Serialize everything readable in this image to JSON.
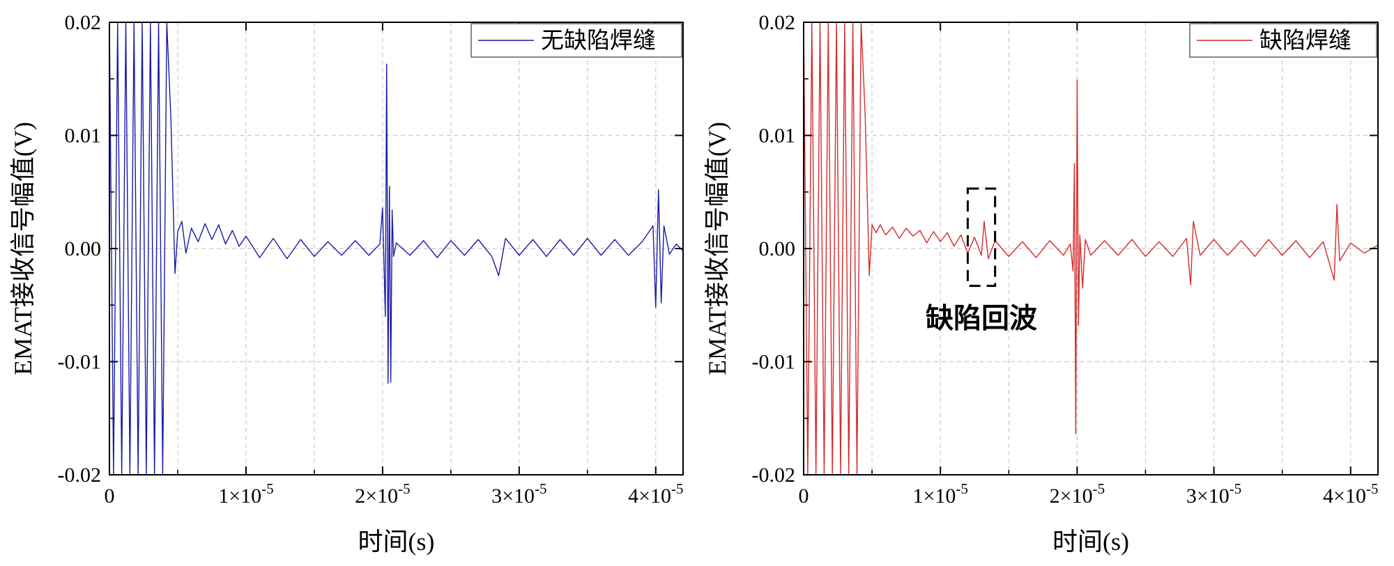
{
  "chart_data": [
    {
      "type": "line",
      "title": "",
      "xlabel": "时间(s)",
      "ylabel": "EMAT接收信号幅值(V)",
      "xlim": [
        0,
        4.2e-05
      ],
      "ylim": [
        -0.02,
        0.02
      ],
      "grid": true,
      "legend_position": "top-right",
      "x_ticks": [
        {
          "value": 0,
          "label": "0"
        },
        {
          "value": 1e-05,
          "base": "1×10",
          "exp": "-5"
        },
        {
          "value": 2e-05,
          "base": "2×10",
          "exp": "-5"
        },
        {
          "value": 3e-05,
          "base": "3×10",
          "exp": "-5"
        },
        {
          "value": 4e-05,
          "base": "4×10",
          "exp": "-5"
        }
      ],
      "y_ticks": [
        {
          "value": 0.02,
          "label": "0.02"
        },
        {
          "value": 0.01,
          "label": "0.01"
        },
        {
          "value": 0.0,
          "label": "0.00"
        },
        {
          "value": -0.01,
          "label": "-0.01"
        },
        {
          "value": -0.02,
          "label": "-0.02"
        }
      ],
      "series": [
        {
          "name": "无缺陷焊缝",
          "color": "#1a1aa6",
          "x": [
            0,
            3e-07,
            6e-07,
            9e-07,
            1.2e-06,
            1.5e-06,
            1.8e-06,
            2.1e-06,
            2.4e-06,
            2.7e-06,
            3e-06,
            3.3e-06,
            3.6e-06,
            3.9e-06,
            4.2e-06,
            4.5e-06,
            4.8e-06,
            5e-06,
            5.3e-06,
            5.6e-06,
            6e-06,
            6.5e-06,
            7e-06,
            7.5e-06,
            8e-06,
            8.5e-06,
            9e-06,
            9.5e-06,
            1e-05,
            1.1e-05,
            1.2e-05,
            1.3e-05,
            1.4e-05,
            1.5e-05,
            1.6e-05,
            1.7e-05,
            1.8e-05,
            1.9e-05,
            1.98e-05,
            2e-05,
            2.02e-05,
            2.03e-05,
            2.04e-05,
            2.05e-05,
            2.06e-05,
            2.07e-05,
            2.08e-05,
            2.1e-05,
            2.2e-05,
            2.3e-05,
            2.4e-05,
            2.5e-05,
            2.6e-05,
            2.7e-05,
            2.8e-05,
            2.85e-05,
            2.9e-05,
            3e-05,
            3.1e-05,
            3.2e-05,
            3.3e-05,
            3.4e-05,
            3.5e-05,
            3.6e-05,
            3.7e-05,
            3.8e-05,
            3.9e-05,
            3.98e-05,
            4e-05,
            4.02e-05,
            4.04e-05,
            4.06e-05,
            4.1e-05,
            4.15e-05,
            4.2e-05
          ],
          "y": [
            0.02,
            -0.02,
            0.02,
            -0.02,
            0.02,
            -0.02,
            0.02,
            -0.02,
            0.02,
            -0.02,
            0.02,
            -0.02,
            0.02,
            -0.02,
            0.02,
            0.0115,
            -0.0022,
            0.0015,
            0.0024,
            -0.0004,
            0.0018,
            0.0006,
            0.0022,
            0.0008,
            0.0021,
            0.0004,
            0.0016,
            0.0002,
            0.0011,
            -0.0008,
            0.0009,
            -0.0009,
            0.0008,
            -0.0007,
            0.0006,
            -0.0006,
            0.0007,
            -0.0006,
            0.0004,
            0.0036,
            -0.006,
            0.0163,
            -0.0119,
            0.0055,
            -0.0118,
            0.0034,
            -0.0007,
            0.0005,
            -0.0006,
            0.0007,
            -0.0008,
            0.0007,
            -0.0006,
            0.0008,
            -0.0007,
            -0.0024,
            0.0009,
            -0.0006,
            0.0008,
            -0.0007,
            0.0008,
            -0.0006,
            0.0009,
            -0.0006,
            0.0008,
            -0.0006,
            0.0006,
            0.002,
            -0.0052,
            0.0052,
            -0.0048,
            0.002,
            -0.0005,
            0.0004,
            -0.0002
          ]
        }
      ]
    },
    {
      "type": "line",
      "title": "",
      "xlabel": "时间(s)",
      "ylabel": "EMAT接收信号幅值(V)",
      "xlim": [
        0,
        4.2e-05
      ],
      "ylim": [
        -0.02,
        0.02
      ],
      "grid": true,
      "legend_position": "top-right",
      "annotation": "缺陷回波",
      "annotation_box_x": [
        1.2e-05,
        1.4e-05
      ],
      "annotation_box_y": [
        -0.0033,
        0.0053
      ],
      "x_ticks": [
        {
          "value": 0,
          "label": "0"
        },
        {
          "value": 1e-05,
          "base": "1×10",
          "exp": "-5"
        },
        {
          "value": 2e-05,
          "base": "2×10",
          "exp": "-5"
        },
        {
          "value": 3e-05,
          "base": "3×10",
          "exp": "-5"
        },
        {
          "value": 4e-05,
          "base": "4×10",
          "exp": "-5"
        }
      ],
      "y_ticks": [
        {
          "value": 0.02,
          "label": "0.02"
        },
        {
          "value": 0.01,
          "label": "0.01"
        },
        {
          "value": 0.0,
          "label": "0.00"
        },
        {
          "value": -0.01,
          "label": "-0.01"
        },
        {
          "value": -0.02,
          "label": "-0.02"
        }
      ],
      "series": [
        {
          "name": "缺陷焊缝",
          "color": "#d42b2b",
          "x": [
            0,
            3e-07,
            6e-07,
            9e-07,
            1.2e-06,
            1.5e-06,
            1.8e-06,
            2.1e-06,
            2.4e-06,
            2.7e-06,
            3e-06,
            3.3e-06,
            3.6e-06,
            3.9e-06,
            4.2e-06,
            4.5e-06,
            4.8e-06,
            5e-06,
            5.3e-06,
            5.6e-06,
            6e-06,
            6.5e-06,
            7e-06,
            7.5e-06,
            8e-06,
            8.5e-06,
            9e-06,
            9.5e-06,
            1e-05,
            1.05e-05,
            1.1e-05,
            1.15e-05,
            1.2e-05,
            1.25e-05,
            1.3e-05,
            1.32e-05,
            1.35e-05,
            1.4e-05,
            1.5e-05,
            1.6e-05,
            1.7e-05,
            1.8e-05,
            1.9e-05,
            1.95e-05,
            1.97e-05,
            1.98e-05,
            1.99e-05,
            2e-05,
            2.01e-05,
            2.02e-05,
            2.04e-05,
            2.06e-05,
            2.1e-05,
            2.2e-05,
            2.3e-05,
            2.4e-05,
            2.5e-05,
            2.6e-05,
            2.7e-05,
            2.8e-05,
            2.83e-05,
            2.85e-05,
            2.9e-05,
            3e-05,
            3.1e-05,
            3.2e-05,
            3.3e-05,
            3.4e-05,
            3.5e-05,
            3.6e-05,
            3.7e-05,
            3.8e-05,
            3.88e-05,
            3.9e-05,
            3.92e-05,
            4e-05,
            4.1e-05,
            4.2e-05
          ],
          "y": [
            0.02,
            -0.02,
            0.02,
            -0.02,
            0.02,
            -0.02,
            0.02,
            -0.02,
            0.02,
            -0.02,
            0.02,
            -0.02,
            0.02,
            -0.02,
            0.02,
            0.0118,
            -0.0024,
            0.0021,
            0.0014,
            0.0021,
            0.0012,
            0.0019,
            0.0009,
            0.0018,
            0.0011,
            0.0016,
            0.0005,
            0.0015,
            0.0006,
            0.0014,
            0.0002,
            0.0012,
            -0.0004,
            0.001,
            -0.0006,
            0.0024,
            -0.0009,
            0.0007,
            -0.0007,
            0.0006,
            -0.0008,
            0.0007,
            -0.0006,
            0.0004,
            -0.002,
            0.0075,
            -0.0164,
            0.0149,
            -0.0068,
            0.0012,
            -0.0035,
            0.0008,
            -0.0006,
            0.0007,
            -0.0006,
            0.0008,
            -0.0007,
            0.0006,
            -0.0007,
            0.0009,
            -0.0032,
            0.0024,
            -0.0006,
            0.0008,
            -0.0006,
            0.0007,
            -0.0007,
            0.0008,
            -0.0006,
            0.0007,
            -0.0008,
            0.0006,
            -0.0028,
            0.0039,
            -0.0011,
            0.0005,
            -0.0004,
            0.0003
          ]
        }
      ]
    }
  ]
}
